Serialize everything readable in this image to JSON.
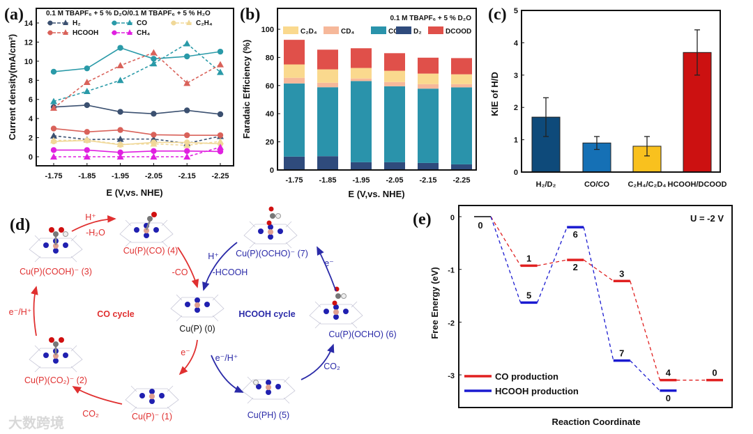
{
  "panels": {
    "a": "(a)",
    "b": "(b)",
    "c": "(c)",
    "d": "(d)",
    "e": "(e)"
  },
  "chart_data": [
    {
      "id": "a",
      "type": "line",
      "title": "0.1 M TBAPF₆ + 5 % D₂O/0.1 M TBAPF₆ + 5 % H₂O",
      "xlabel": "E (V,vs. NHE)",
      "ylabel": "Current density(mA/cm²)",
      "categories": [
        "-1.75",
        "-1.85",
        "-1.95",
        "-2.05",
        "-2.15",
        "-2.25"
      ],
      "ylim": [
        -1,
        15
      ],
      "yticks": [
        "0",
        "2",
        "4",
        "6",
        "8",
        "10",
        "12",
        "14"
      ],
      "series": [
        {
          "name": "H₂",
          "color": "#3b5070",
          "circle": [
            5.2,
            5.4,
            4.7,
            4.5,
            4.85,
            4.45
          ],
          "triangle": [
            2.2,
            1.8,
            1.85,
            1.85,
            1.4,
            2.15
          ]
        },
        {
          "name": "CO",
          "color": "#2a9aa8",
          "circle": [
            8.9,
            9.25,
            11.4,
            10.25,
            10.5,
            11.0
          ],
          "triangle": [
            5.8,
            6.85,
            8.0,
            9.75,
            11.85,
            8.85
          ]
        },
        {
          "name": "C₂H₄",
          "color": "#f0d898",
          "circle": [
            1.6,
            1.7,
            1.25,
            1.5,
            1.5,
            1.35
          ],
          "triangle": [
            1.7,
            1.75,
            1.3,
            1.35,
            1.2,
            1.6
          ]
        },
        {
          "name": "HCOOH",
          "color": "#d9625a",
          "circle": [
            2.95,
            2.6,
            2.8,
            2.3,
            2.25,
            2.25
          ],
          "triangle": [
            5.1,
            7.8,
            9.55,
            10.9,
            7.7,
            9.65
          ]
        },
        {
          "name": "CH₄",
          "color": "#e020e0",
          "circle": [
            0.7,
            0.7,
            0.45,
            0.6,
            0.6,
            0.55
          ],
          "triangle": [
            0,
            0,
            0,
            0,
            0,
            1.0
          ]
        }
      ]
    },
    {
      "id": "b",
      "type": "bar",
      "stacked": true,
      "title": "0.1 M TBAPF₆ + 5 % D₂O",
      "xlabel": "E (V,vs. NHE)",
      "ylabel": "Faradaic Efficiency (%)",
      "categories": [
        "-1.75",
        "-1.85",
        "-1.95",
        "-2.05",
        "-2.15",
        "-2.25"
      ],
      "ylim": [
        0,
        115
      ],
      "yticks": [
        "0",
        "20",
        "40",
        "60",
        "80",
        "100"
      ],
      "legend_order": [
        "C₂D₄",
        "CD₄",
        "CO",
        "D₂",
        "DCOOD"
      ],
      "series": [
        {
          "name": "D₂",
          "color": "#2f4b7c",
          "values": [
            9.5,
            9.8,
            5.5,
            5.5,
            5.0,
            4.0
          ]
        },
        {
          "name": "CO",
          "color": "#2a93ab",
          "values": [
            52,
            49,
            57.7,
            54,
            52.8,
            54.7
          ]
        },
        {
          "name": "CD₄",
          "color": "#f6b89a",
          "values": [
            4,
            3.2,
            1.8,
            3,
            3.2,
            2.3
          ]
        },
        {
          "name": "C₂D₄",
          "color": "#fad98e",
          "values": [
            9.5,
            9.5,
            7.5,
            8,
            7.5,
            7
          ]
        },
        {
          "name": "DCOOD",
          "color": "#e0504a",
          "values": [
            17.5,
            14,
            14,
            12.5,
            11.3,
            11.5
          ]
        }
      ]
    },
    {
      "id": "c",
      "type": "bar",
      "xlabel": "",
      "ylabel": "KIE of H/D",
      "categories": [
        "H₂/D₂",
        "CO/CO",
        "C₂H₄/C₂D₄",
        "HCOOH/DCOOD"
      ],
      "values": [
        1.7,
        0.9,
        0.8,
        3.7
      ],
      "errors": [
        0.6,
        0.2,
        0.3,
        0.7
      ],
      "colors": [
        "#0e4a7a",
        "#1570b5",
        "#f9c11e",
        "#cc1111"
      ],
      "ylim": [
        0,
        5
      ],
      "yticks": [
        "0",
        "1",
        "2",
        "3",
        "4",
        "5"
      ]
    },
    {
      "id": "e",
      "type": "line",
      "annotation": "U = -2 V",
      "xlabel": "Reaction Coordinate",
      "ylabel": "Free Energy (eV)",
      "ylim": [
        -3.55,
        0.22
      ],
      "yticks": [
        "0",
        "-1",
        "-2",
        "-3"
      ],
      "start": {
        "label": "0",
        "step": 0,
        "energy": 0,
        "color": "#000000"
      },
      "series": [
        {
          "name": "CO production",
          "color": "#e02020",
          "steps": [
            1,
            2,
            3,
            4,
            5
          ],
          "energies": [
            -0.93,
            -0.82,
            -1.22,
            -3.1,
            -3.1
          ],
          "labels": [
            "1",
            "2",
            "3",
            "4",
            "0"
          ]
        },
        {
          "name": "HCOOH production",
          "color": "#1a1ad0",
          "steps": [
            1,
            2,
            3,
            4
          ],
          "energies": [
            -1.63,
            -0.2,
            -2.73,
            -3.3
          ],
          "labels": [
            "5",
            "6",
            "7",
            "0"
          ]
        }
      ]
    }
  ],
  "diagram": {
    "co_cycle": "CO cycle",
    "hcooh_cycle": "HCOOH cycle",
    "species": {
      "s0": "Cu(P) (0)",
      "s1": "Cu(P)⁻ (1)",
      "s2": "Cu(P)(CO₂)⁻ (2)",
      "s3": "Cu(P)(COOH)⁻ (3)",
      "s4": "Cu(P)(CO) (4)",
      "s5": "Cu(PH) (5)",
      "s6": "Cu(P)(OCHO) (6)",
      "s7": "Cu(P)(OCHO)⁻ (7)"
    },
    "steps": {
      "h_plus_red": "H⁺",
      "minus_h2o": "-H₂O",
      "minus_co": "-CO",
      "e_h_red": "e⁻/H⁺",
      "e_red": "e⁻",
      "co2_red": "CO₂",
      "h_plus_blue": "H⁺",
      "minus_hcooh": "-HCOOH",
      "e_blue": "e⁻",
      "e_h_blue": "e⁻/H⁺",
      "co2_blue": "CO₂"
    },
    "colors": {
      "red": "#e03030",
      "blue": "#2a2aa8",
      "black": "#111111"
    }
  },
  "watermark": "大数跨境"
}
